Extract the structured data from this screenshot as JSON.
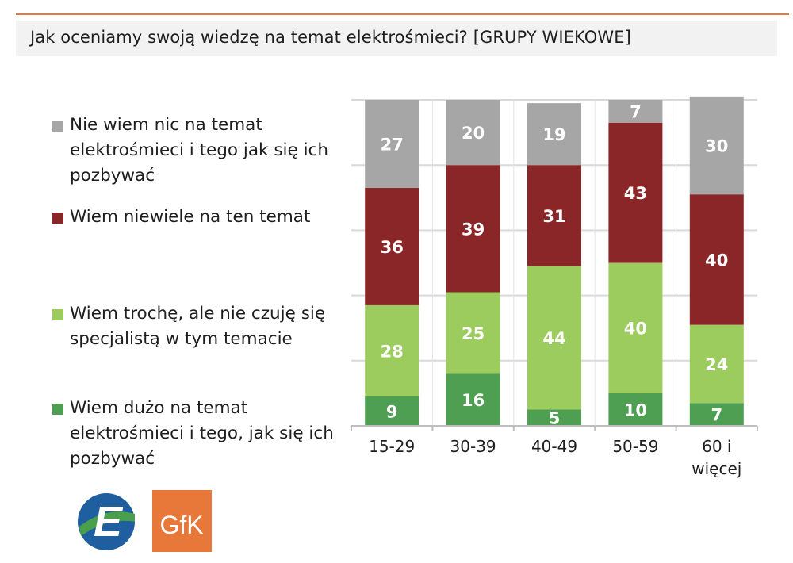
{
  "title": "Jak oceniamy swoją wiedzę na temat elektrośmieci? [GRUPY WIEKOWE]",
  "colors": {
    "accent_rule": "#e8773a",
    "grey": "#a6a6a6",
    "dark_red": "#8b2628",
    "light_green": "#9ccb5e",
    "dark_green": "#4e9f52"
  },
  "legend": [
    {
      "label": "Nie wiem nic na temat\nelektrośmieci i tego jak się ich\npozbywać",
      "color": "#a6a6a6"
    },
    {
      "label": "Wiem niewiele na ten temat",
      "color": "#8b2628"
    },
    {
      "label": "Wiem trochę, ale nie czuję się\nspecjalistą w tym temacie",
      "color": "#9ccb5e"
    },
    {
      "label": "Wiem dużo na temat\nelektrośmieci i tego, jak się ich\npozbywać",
      "color": "#4e9f52"
    }
  ],
  "chart_data": {
    "type": "bar",
    "stacked": true,
    "title": "Jak oceniamy swoją wiedzę na temat elektrośmieci? [GRUPY WIEKOWE]",
    "categories": [
      "15-29",
      "30-39",
      "40-49",
      "50-59",
      "60 i\nwięcej"
    ],
    "series": [
      {
        "name": "Wiem dużo na temat elektrośmieci i tego, jak się ich pozbywać",
        "color": "#4e9f52",
        "values": [
          9,
          16,
          5,
          10,
          7
        ]
      },
      {
        "name": "Wiem trochę, ale nie czuję się specjalistą w tym temacie",
        "color": "#9ccb5e",
        "values": [
          28,
          25,
          44,
          40,
          24
        ]
      },
      {
        "name": "Wiem niewiele na ten temat",
        "color": "#8b2628",
        "values": [
          36,
          39,
          31,
          43,
          40
        ]
      },
      {
        "name": "Nie wiem nic na temat elektrośmieci i tego jak się ich pozbywać",
        "color": "#a6a6a6",
        "values": [
          27,
          20,
          19,
          7,
          30
        ]
      }
    ],
    "ylim": [
      0,
      100
    ],
    "grid": true,
    "data_labels": true,
    "legend_position": "left"
  },
  "logos": {
    "left_logo_letter": "E",
    "right_logo_text": "GfK"
  }
}
